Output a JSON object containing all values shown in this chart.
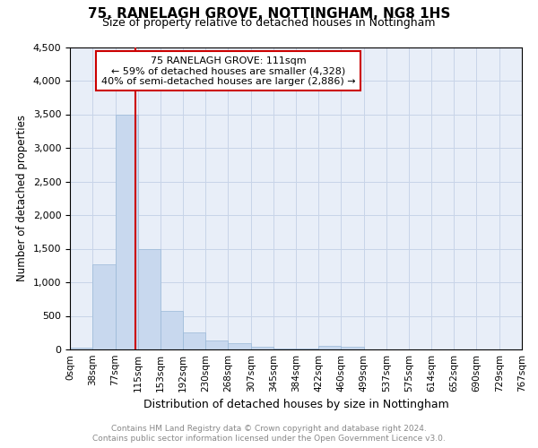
{
  "title": "75, RANELAGH GROVE, NOTTINGHAM, NG8 1HS",
  "subtitle": "Size of property relative to detached houses in Nottingham",
  "xlabel": "Distribution of detached houses by size in Nottingham",
  "ylabel": "Number of detached properties",
  "annotation_line1": "75 RANELAGH GROVE: 111sqm",
  "annotation_line2": "← 59% of detached houses are smaller (4,328)",
  "annotation_line3": "40% of semi-detached houses are larger (2,886) →",
  "bar_color": "#c8d8ee",
  "bar_edge_color": "#9ab8d8",
  "vline_color": "#cc0000",
  "vline_x": 111,
  "bin_edges": [
    0,
    38,
    77,
    115,
    153,
    192,
    230,
    268,
    307,
    345,
    384,
    422,
    460,
    499,
    537,
    575,
    614,
    652,
    690,
    729,
    767
  ],
  "bar_heights": [
    30,
    1270,
    3500,
    1490,
    580,
    250,
    140,
    90,
    40,
    20,
    10,
    50,
    45,
    0,
    0,
    0,
    0,
    0,
    0,
    0
  ],
  "ylim": [
    0,
    4500
  ],
  "yticks": [
    0,
    500,
    1000,
    1500,
    2000,
    2500,
    3000,
    3500,
    4000,
    4500
  ],
  "grid_color": "#c8d4e8",
  "background_color": "#e8eef8",
  "footer_line1": "Contains HM Land Registry data © Crown copyright and database right 2024.",
  "footer_line2": "Contains public sector information licensed under the Open Government Licence v3.0."
}
